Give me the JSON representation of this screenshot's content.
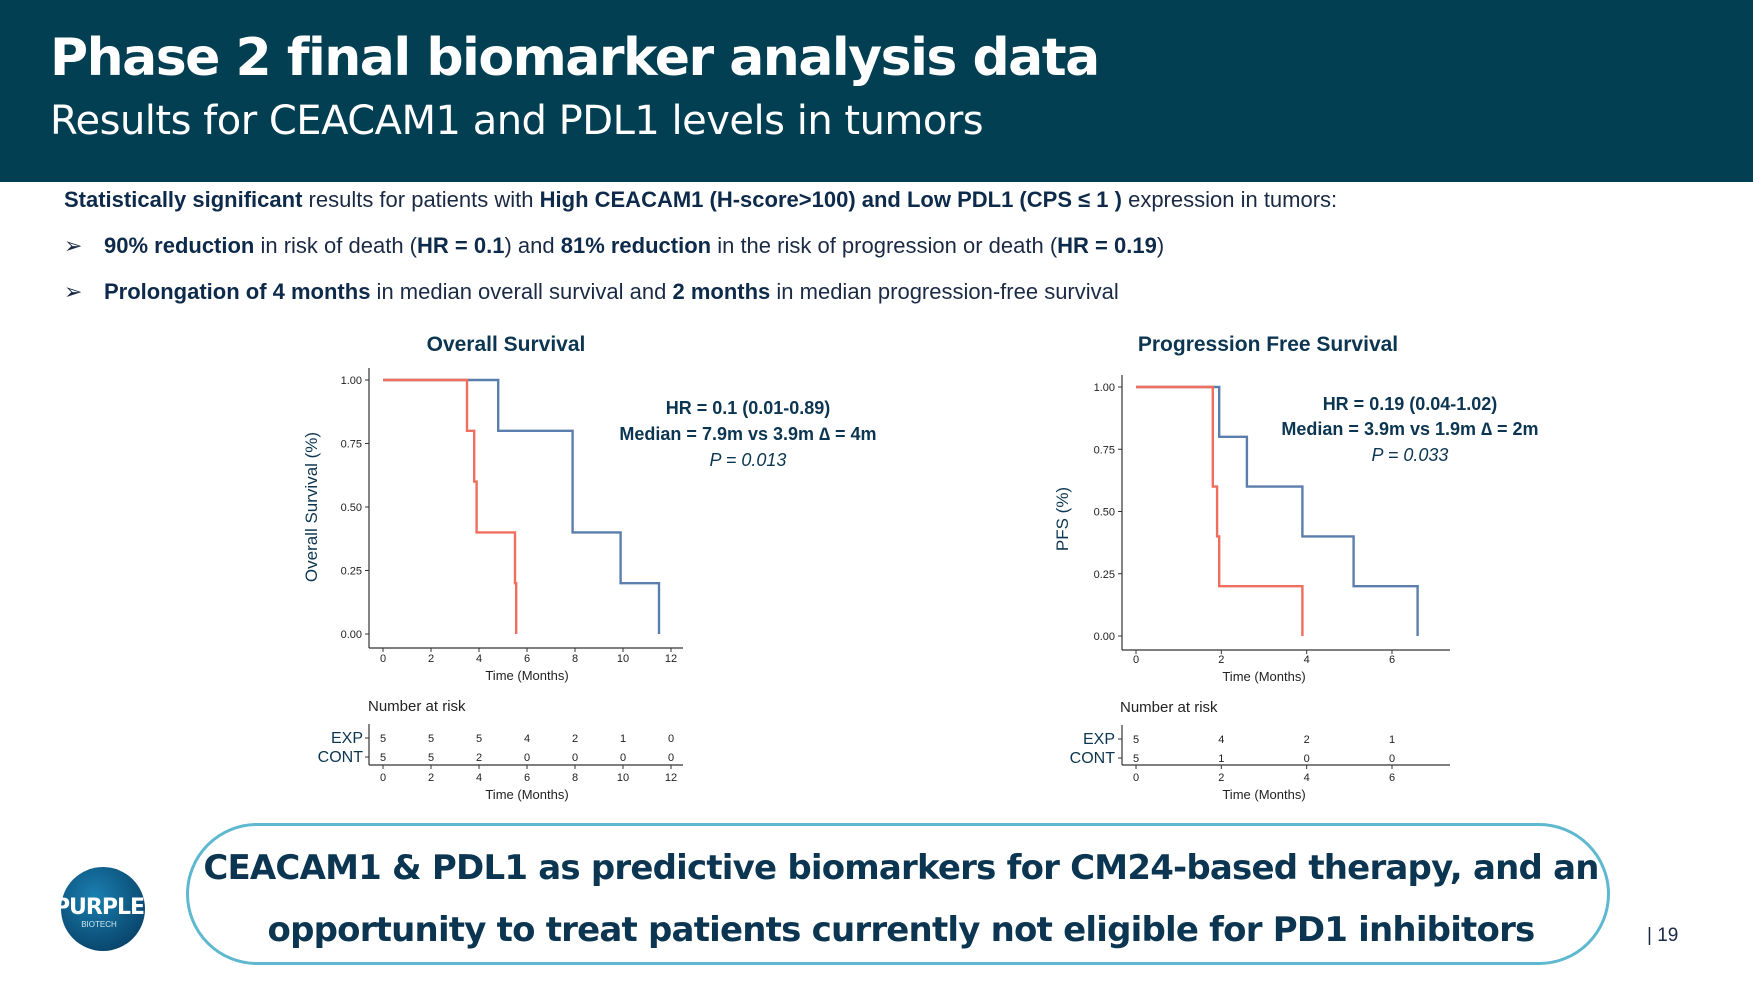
{
  "header": {
    "title": "Phase 2 final biomarker analysis data",
    "subtitle": "Results for CEACAM1 and PDL1 levels in tumors"
  },
  "intro": {
    "bold1": "Statistically significant",
    "text1": " results for patients with ",
    "bold2": "High CEACAM1 (H-score>100) and Low PDL1 (CPS ≤ 1 )",
    "text2": " expression in tumors:"
  },
  "bullets": [
    {
      "bold1": "90% reduction",
      "text1": " in risk of death (",
      "bold2": "HR = 0.1",
      "text2": ") and ",
      "bold3": "81% reduction",
      "text3": " in the risk of progression or death (",
      "bold4": "HR = 0.19",
      "text4": ")"
    },
    {
      "bold1": "Prolongation of 4 months",
      "text1": " in median overall survival and ",
      "bold2": "2 months",
      "text2": " in median progression-free survival"
    }
  ],
  "colors": {
    "header_bg": "#033f52",
    "exp": "#5b7fad",
    "cont": "#ef6e5d",
    "annot": "#0b3550",
    "callout_border": "#5eb8d0"
  },
  "chart_data": [
    {
      "type": "line",
      "title": "Overall Survival",
      "xlabel": "Time (Months)",
      "ylabel": "Overall Survival (%)",
      "xlim": [
        0,
        12.5
      ],
      "ylim": [
        0,
        1.05
      ],
      "xticks": [
        0,
        2,
        4,
        6,
        8,
        10,
        12
      ],
      "yticks": [
        "0.00",
        "0.25",
        "0.50",
        "0.75",
        "1.00"
      ],
      "yticks_values": [
        0,
        0.25,
        0.5,
        0.75,
        1.0
      ],
      "series": [
        {
          "name": "EXP",
          "color": "#5b7fad",
          "steps": [
            [
              0,
              1.0
            ],
            [
              4.8,
              1.0
            ],
            [
              4.8,
              0.8
            ],
            [
              7.9,
              0.8
            ],
            [
              7.9,
              0.4
            ],
            [
              9.9,
              0.4
            ],
            [
              9.9,
              0.2
            ],
            [
              11.5,
              0.2
            ],
            [
              11.5,
              0.0
            ]
          ]
        },
        {
          "name": "CONT",
          "color": "#ef6e5d",
          "steps": [
            [
              0,
              1.0
            ],
            [
              3.5,
              1.0
            ],
            [
              3.5,
              0.8
            ],
            [
              3.8,
              0.8
            ],
            [
              3.8,
              0.6
            ],
            [
              3.9,
              0.6
            ],
            [
              3.9,
              0.4
            ],
            [
              5.5,
              0.4
            ],
            [
              5.5,
              0.2
            ],
            [
              5.55,
              0.2
            ],
            [
              5.55,
              0.0
            ]
          ]
        }
      ],
      "annotations": [
        "HR = 0.1 (0.01-0.89)",
        "Median = 7.9m vs 3.9m ∆ = 4m",
        "P = 0.013"
      ],
      "risk_table": {
        "title": "Number at risk",
        "xlabel": "Time (Months)",
        "times": [
          0,
          2,
          4,
          6,
          8,
          10,
          12
        ],
        "rows": [
          {
            "label": "EXP",
            "values": [
              "5",
              "5",
              "5",
              "4",
              "2",
              "1",
              "0"
            ]
          },
          {
            "label": "CONT",
            "values": [
              "5",
              "5",
              "2",
              "0",
              "0",
              "0",
              "0"
            ]
          }
        ]
      }
    },
    {
      "type": "line",
      "title": "Progression Free Survival",
      "xlabel": "Time (Months)",
      "ylabel": "PFS (%)",
      "xlim": [
        0,
        7.3
      ],
      "ylim": [
        0,
        1.05
      ],
      "xticks": [
        0,
        2,
        4,
        6
      ],
      "yticks": [
        "0.00",
        "0.25",
        "0.50",
        "0.75",
        "1.00"
      ],
      "yticks_values": [
        0,
        0.25,
        0.5,
        0.75,
        1.0
      ],
      "series": [
        {
          "name": "EXP",
          "color": "#5b7fad",
          "steps": [
            [
              0,
              1.0
            ],
            [
              1.95,
              1.0
            ],
            [
              1.95,
              0.8
            ],
            [
              2.6,
              0.8
            ],
            [
              2.6,
              0.6
            ],
            [
              3.9,
              0.6
            ],
            [
              3.9,
              0.4
            ],
            [
              5.1,
              0.4
            ],
            [
              5.1,
              0.2
            ],
            [
              6.6,
              0.2
            ],
            [
              6.6,
              0.0
            ]
          ]
        },
        {
          "name": "CONT",
          "color": "#ef6e5d",
          "steps": [
            [
              0,
              1.0
            ],
            [
              1.8,
              1.0
            ],
            [
              1.8,
              0.6
            ],
            [
              1.9,
              0.6
            ],
            [
              1.9,
              0.4
            ],
            [
              1.95,
              0.4
            ],
            [
              1.95,
              0.2
            ],
            [
              3.9,
              0.2
            ],
            [
              3.9,
              0.0
            ]
          ]
        }
      ],
      "annotations": [
        "HR = 0.19 (0.04-1.02)",
        "Median = 3.9m vs 1.9m ∆ = 2m",
        "P = 0.033"
      ],
      "risk_table": {
        "title": "Number at risk",
        "xlabel": "Time (Months)",
        "times": [
          0,
          2,
          4,
          6
        ],
        "rows": [
          {
            "label": "EXP",
            "values": [
              "5",
              "4",
              "2",
              "1"
            ]
          },
          {
            "label": "CONT",
            "values": [
              "5",
              "1",
              "0",
              "0"
            ]
          }
        ]
      }
    }
  ],
  "callout": {
    "line1": "CEACAM1 & PDL1 as predictive biomarkers for CM24-based therapy, and an",
    "line2": "opportunity to treat patients currently not eligible for PD1 inhibitors"
  },
  "logo": {
    "text": "PURPLE",
    "sub": "BIOTECH"
  },
  "page_number": "| 19"
}
